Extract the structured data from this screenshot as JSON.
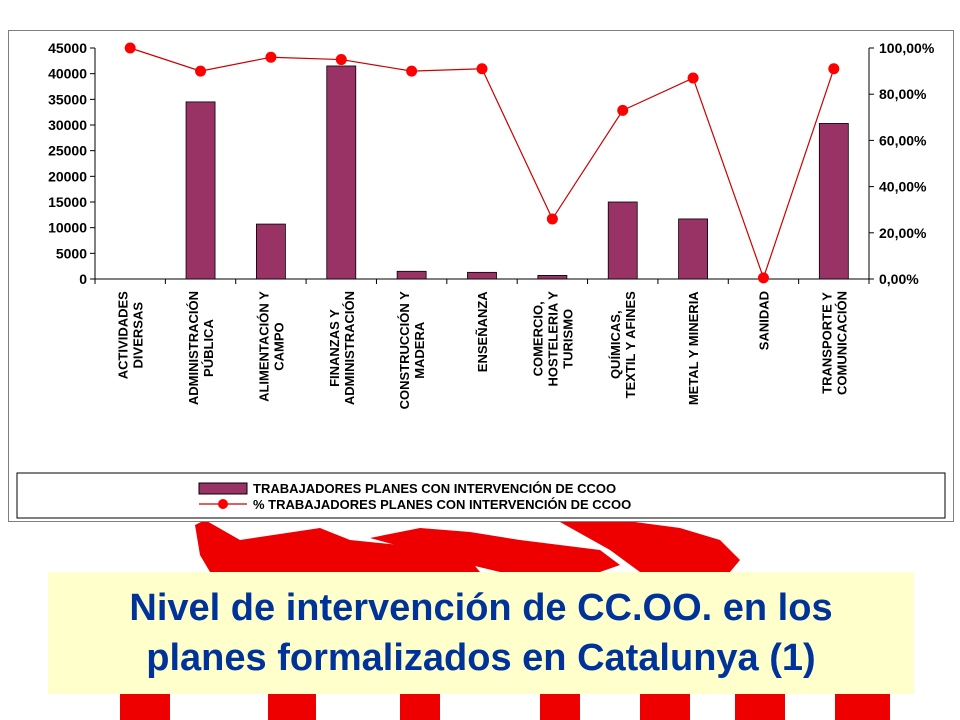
{
  "title": {
    "text": "Nivel de intervención de CC.OO. en los\nplanes formalizados en Catalunya (1)"
  },
  "colors": {
    "bar": "#993366",
    "line": "#cc0000",
    "marker": "#ff0000",
    "title_text": "#003399",
    "title_bg": "#ffffcc",
    "logo": "#ee0000"
  },
  "chart_data": {
    "type": "bar",
    "categories": [
      "ACTIVIDADES\nDIVERSAS",
      "ADMINISTRACIÓN\nPÚBLICA",
      "ALIMENTACIÓN Y\nCAMPO",
      "FINANZAS Y\nADMINISTRACIÓN",
      "CONSTRUCCIÓN Y\nMADERA",
      "ENSEÑANZA",
      "COMERCIO,\nHOSTELERIA Y\nTURISMO",
      "QUÍMICAS,\nTEXTIL Y AFINES",
      "METAL Y MINERIA",
      "SANIDAD",
      "TRANSPORTE Y\nCOMUNICACIÓN"
    ],
    "series": [
      {
        "name": "TRABAJADORES PLANES CON INTERVENCIÓN DE CCOO",
        "type": "bar",
        "axis": "left",
        "values": [
          0,
          34500,
          10700,
          41500,
          1500,
          1300,
          700,
          15000,
          11700,
          0,
          30300
        ]
      },
      {
        "name": "% TRABAJADORES PLANES CON INTERVENCIÓN DE CCOO",
        "type": "line",
        "axis": "right",
        "values": [
          100,
          90,
          96,
          95,
          90,
          91,
          26,
          73,
          87,
          0.5,
          91
        ]
      }
    ],
    "y_left": {
      "min": 0,
      "max": 45000,
      "ticks": [
        0,
        5000,
        10000,
        15000,
        20000,
        25000,
        30000,
        35000,
        40000,
        45000
      ],
      "tick_labels": [
        "0",
        "5000",
        "10000",
        "15000",
        "20000",
        "25000",
        "30000",
        "35000",
        "40000",
        "45000"
      ]
    },
    "y_right": {
      "min": 0,
      "max": 100,
      "ticks": [
        0,
        20,
        40,
        60,
        80,
        100
      ],
      "tick_labels": [
        "0,00%",
        "20,00%",
        "40,00%",
        "60,00%",
        "80,00%",
        "100,00%"
      ]
    },
    "grid": false,
    "legend_position": "bottom"
  }
}
